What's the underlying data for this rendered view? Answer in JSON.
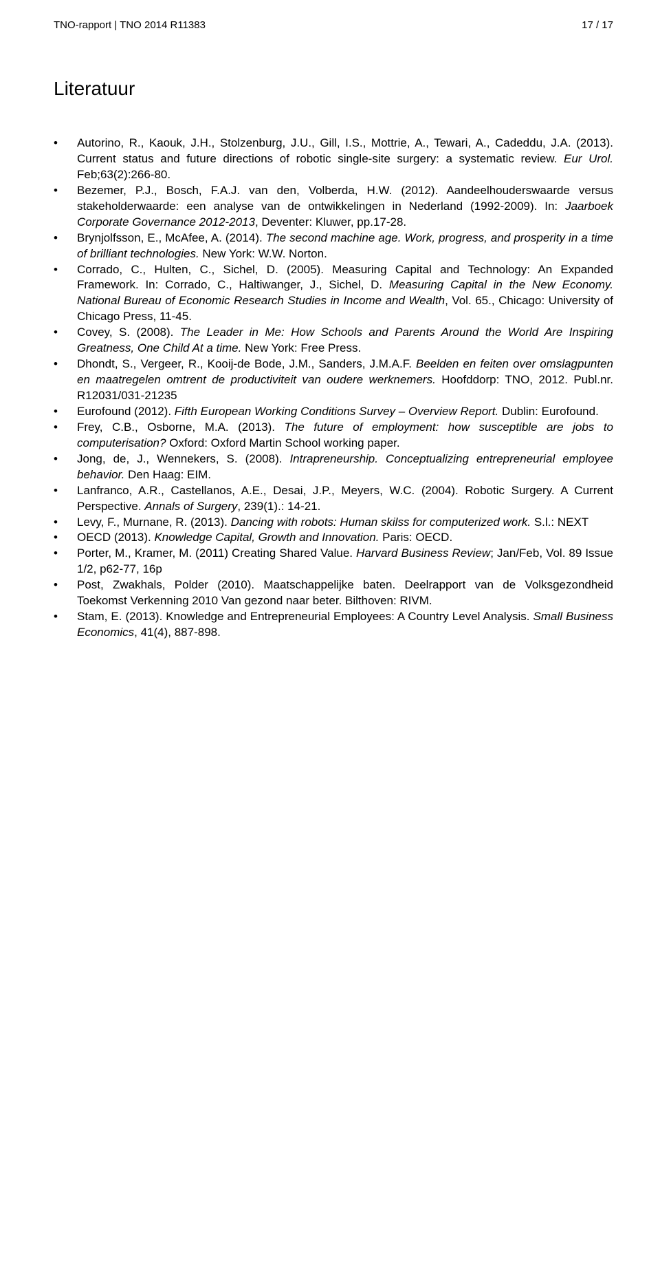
{
  "header": {
    "left": "TNO-rapport | TNO 2014 R11383",
    "right": "17 / 17"
  },
  "title": "Literatuur",
  "refs": [
    {
      "html": "Autorino, R., Kaouk, J.H., Stolzenburg, J.U., Gill, I.S., Mottrie, A., Tewari, A., Cadeddu, J.A. (2013). Current status and future directions of robotic single-site surgery: a systematic review. <span class=\"italic\">Eur Urol.</span> Feb;63(2):266-80."
    },
    {
      "html": "Bezemer, P.J., Bosch, F.A.J. van den, Volberda, H.W. (2012). Aandeelhouderswaarde versus stakeholderwaarde: een analyse van de ontwikkelingen in Nederland (1992-2009). In: <span class=\"italic\">Jaarboek Corporate Governance 2012-2013</span>, Deventer: Kluwer, pp.17-28."
    },
    {
      "html": "Brynjolfsson, E., McAfee, A. (2014). <span class=\"italic\">The second machine age. Work, progress, and prosperity in a time of brilliant technologies.</span> New York: W.W. Norton."
    },
    {
      "html": "Corrado, C., Hulten, C., Sichel, D. (2005). Measuring Capital and Technology: An Expanded Framework. In: Corrado, C., Haltiwanger, J., Sichel, D. <span class=\"italic\">Measuring Capital in the New Economy. National Bureau of Economic Research Studies in Income and Wealth</span>, Vol. 65., Chicago: University of Chicago Press, 11-45."
    },
    {
      "html": "Covey, S. (2008). <span class=\"italic\">The Leader in Me: How Schools and Parents Around the World Are Inspiring Greatness, One Child At a time.</span> New York: Free Press."
    },
    {
      "html": "Dhondt, S., Vergeer, R., Kooij-de Bode, J.M., Sanders, J.M.A.F. <span class=\"italic\">Beelden en feiten over omslagpunten en maatregelen omtrent de productiviteit van oudere werknemers.</span> Hoofddorp: TNO, 2012. Publ.nr. R12031/031-21235"
    },
    {
      "html": "Eurofound (2012). <span class=\"italic\">Fifth European Working Conditions Survey – Overview Report.</span> Dublin: Eurofound."
    },
    {
      "html": "Frey, C.B., Osborne, M.A. (2013). <span class=\"italic\">The future of employment: how susceptible are jobs to computerisation?</span> Oxford: Oxford Martin School working paper."
    },
    {
      "html": "Jong, de, J., Wennekers, S. (2008). <span class=\"italic\">Intrapreneurship. Conceptualizing entrepreneurial employee behavior.</span> Den Haag: EIM."
    },
    {
      "html": "Lanfranco, A.R., Castellanos, A.E., Desai, J.P., Meyers, W.C. (2004). Robotic Surgery. A Current Perspective. <span class=\"italic\">Annals of Surgery</span>, 239(1).: 14-21."
    },
    {
      "html": "Levy, F., Murnane, R. (2013). <span class=\"italic\">Dancing with robots: Human skilss for computerized work.</span> S.l.: NEXT"
    },
    {
      "html": "OECD (2013). <span class=\"italic\">Knowledge Capital, Growth and Innovation.</span> Paris: OECD."
    },
    {
      "html": "Porter, M., Kramer, M. (2011) Creating Shared Value. <span class=\"italic\">Harvard Business Review</span>; Jan/Feb, Vol. 89 Issue 1/2, p62-77, 16p"
    },
    {
      "html": "Post, Zwakhals, Polder (2010). Maatschappelijke baten. Deelrapport van de Volksgezondheid Toekomst Verkenning 2010 Van gezond naar beter. Bilthoven: RIVM."
    },
    {
      "html": "Stam, E. (2013). Knowledge and Entrepreneurial Employees: A Country Level Analysis. <span class=\"italic\">Small Business Economics</span>, 41(4), 887-898."
    }
  ]
}
